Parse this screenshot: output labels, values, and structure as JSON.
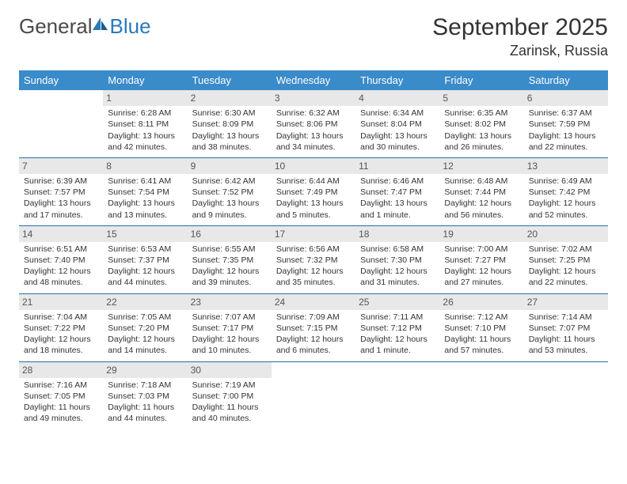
{
  "brand": {
    "part1": "General",
    "part2": "Blue"
  },
  "title": "September 2025",
  "location": "Zarinsk, Russia",
  "colors": {
    "header_bg": "#3a8bc9",
    "header_text": "#ffffff",
    "daynum_bg": "#e8e8e8",
    "border": "#2a6fa3",
    "text": "#333333"
  },
  "day_names": [
    "Sunday",
    "Monday",
    "Tuesday",
    "Wednesday",
    "Thursday",
    "Friday",
    "Saturday"
  ],
  "weeks": [
    [
      null,
      {
        "n": "1",
        "sr": "Sunrise: 6:28 AM",
        "ss": "Sunset: 8:11 PM",
        "dl": "Daylight: 13 hours and 42 minutes."
      },
      {
        "n": "2",
        "sr": "Sunrise: 6:30 AM",
        "ss": "Sunset: 8:09 PM",
        "dl": "Daylight: 13 hours and 38 minutes."
      },
      {
        "n": "3",
        "sr": "Sunrise: 6:32 AM",
        "ss": "Sunset: 8:06 PM",
        "dl": "Daylight: 13 hours and 34 minutes."
      },
      {
        "n": "4",
        "sr": "Sunrise: 6:34 AM",
        "ss": "Sunset: 8:04 PM",
        "dl": "Daylight: 13 hours and 30 minutes."
      },
      {
        "n": "5",
        "sr": "Sunrise: 6:35 AM",
        "ss": "Sunset: 8:02 PM",
        "dl": "Daylight: 13 hours and 26 minutes."
      },
      {
        "n": "6",
        "sr": "Sunrise: 6:37 AM",
        "ss": "Sunset: 7:59 PM",
        "dl": "Daylight: 13 hours and 22 minutes."
      }
    ],
    [
      {
        "n": "7",
        "sr": "Sunrise: 6:39 AM",
        "ss": "Sunset: 7:57 PM",
        "dl": "Daylight: 13 hours and 17 minutes."
      },
      {
        "n": "8",
        "sr": "Sunrise: 6:41 AM",
        "ss": "Sunset: 7:54 PM",
        "dl": "Daylight: 13 hours and 13 minutes."
      },
      {
        "n": "9",
        "sr": "Sunrise: 6:42 AM",
        "ss": "Sunset: 7:52 PM",
        "dl": "Daylight: 13 hours and 9 minutes."
      },
      {
        "n": "10",
        "sr": "Sunrise: 6:44 AM",
        "ss": "Sunset: 7:49 PM",
        "dl": "Daylight: 13 hours and 5 minutes."
      },
      {
        "n": "11",
        "sr": "Sunrise: 6:46 AM",
        "ss": "Sunset: 7:47 PM",
        "dl": "Daylight: 13 hours and 1 minute."
      },
      {
        "n": "12",
        "sr": "Sunrise: 6:48 AM",
        "ss": "Sunset: 7:44 PM",
        "dl": "Daylight: 12 hours and 56 minutes."
      },
      {
        "n": "13",
        "sr": "Sunrise: 6:49 AM",
        "ss": "Sunset: 7:42 PM",
        "dl": "Daylight: 12 hours and 52 minutes."
      }
    ],
    [
      {
        "n": "14",
        "sr": "Sunrise: 6:51 AM",
        "ss": "Sunset: 7:40 PM",
        "dl": "Daylight: 12 hours and 48 minutes."
      },
      {
        "n": "15",
        "sr": "Sunrise: 6:53 AM",
        "ss": "Sunset: 7:37 PM",
        "dl": "Daylight: 12 hours and 44 minutes."
      },
      {
        "n": "16",
        "sr": "Sunrise: 6:55 AM",
        "ss": "Sunset: 7:35 PM",
        "dl": "Daylight: 12 hours and 39 minutes."
      },
      {
        "n": "17",
        "sr": "Sunrise: 6:56 AM",
        "ss": "Sunset: 7:32 PM",
        "dl": "Daylight: 12 hours and 35 minutes."
      },
      {
        "n": "18",
        "sr": "Sunrise: 6:58 AM",
        "ss": "Sunset: 7:30 PM",
        "dl": "Daylight: 12 hours and 31 minutes."
      },
      {
        "n": "19",
        "sr": "Sunrise: 7:00 AM",
        "ss": "Sunset: 7:27 PM",
        "dl": "Daylight: 12 hours and 27 minutes."
      },
      {
        "n": "20",
        "sr": "Sunrise: 7:02 AM",
        "ss": "Sunset: 7:25 PM",
        "dl": "Daylight: 12 hours and 22 minutes."
      }
    ],
    [
      {
        "n": "21",
        "sr": "Sunrise: 7:04 AM",
        "ss": "Sunset: 7:22 PM",
        "dl": "Daylight: 12 hours and 18 minutes."
      },
      {
        "n": "22",
        "sr": "Sunrise: 7:05 AM",
        "ss": "Sunset: 7:20 PM",
        "dl": "Daylight: 12 hours and 14 minutes."
      },
      {
        "n": "23",
        "sr": "Sunrise: 7:07 AM",
        "ss": "Sunset: 7:17 PM",
        "dl": "Daylight: 12 hours and 10 minutes."
      },
      {
        "n": "24",
        "sr": "Sunrise: 7:09 AM",
        "ss": "Sunset: 7:15 PM",
        "dl": "Daylight: 12 hours and 6 minutes."
      },
      {
        "n": "25",
        "sr": "Sunrise: 7:11 AM",
        "ss": "Sunset: 7:12 PM",
        "dl": "Daylight: 12 hours and 1 minute."
      },
      {
        "n": "26",
        "sr": "Sunrise: 7:12 AM",
        "ss": "Sunset: 7:10 PM",
        "dl": "Daylight: 11 hours and 57 minutes."
      },
      {
        "n": "27",
        "sr": "Sunrise: 7:14 AM",
        "ss": "Sunset: 7:07 PM",
        "dl": "Daylight: 11 hours and 53 minutes."
      }
    ],
    [
      {
        "n": "28",
        "sr": "Sunrise: 7:16 AM",
        "ss": "Sunset: 7:05 PM",
        "dl": "Daylight: 11 hours and 49 minutes."
      },
      {
        "n": "29",
        "sr": "Sunrise: 7:18 AM",
        "ss": "Sunset: 7:03 PM",
        "dl": "Daylight: 11 hours and 44 minutes."
      },
      {
        "n": "30",
        "sr": "Sunrise: 7:19 AM",
        "ss": "Sunset: 7:00 PM",
        "dl": "Daylight: 11 hours and 40 minutes."
      },
      null,
      null,
      null,
      null
    ]
  ]
}
